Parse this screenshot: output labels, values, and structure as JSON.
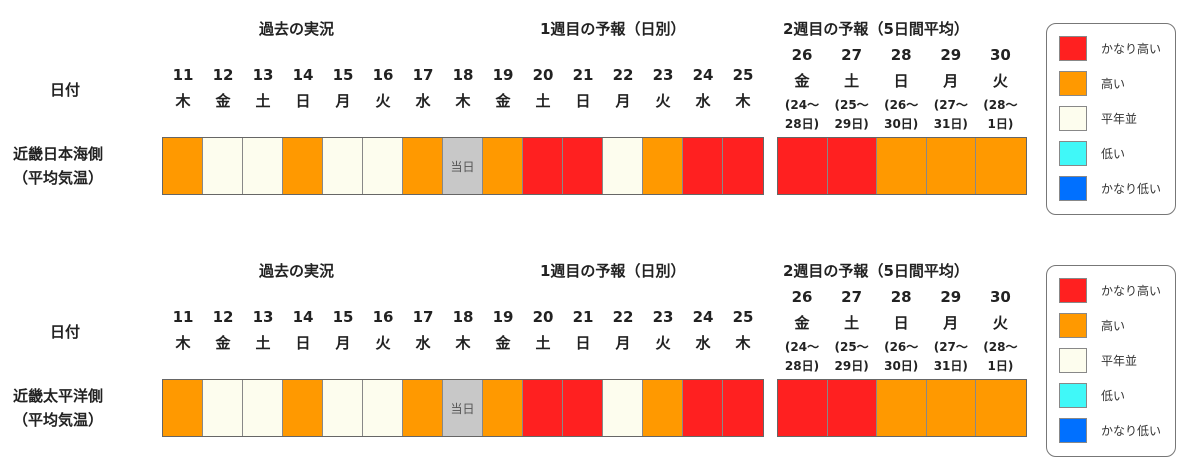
{
  "colors": {
    "much_above": "#FF2020",
    "above": "#FF9900",
    "normal": "#FDFDEE",
    "below": "#40F8F8",
    "much_below": "#0070FF",
    "today": "#C8C8C8"
  },
  "headers": {
    "past": "過去の実況",
    "week1": "1週目の予報（日別）",
    "week2": "2週目の予報（5日間平均）",
    "date_label": "日付"
  },
  "days": [
    {
      "d": "11",
      "w": "木"
    },
    {
      "d": "12",
      "w": "金"
    },
    {
      "d": "13",
      "w": "土"
    },
    {
      "d": "14",
      "w": "日"
    },
    {
      "d": "15",
      "w": "月"
    },
    {
      "d": "16",
      "w": "火"
    },
    {
      "d": "17",
      "w": "水"
    },
    {
      "d": "18",
      "w": "木"
    },
    {
      "d": "19",
      "w": "金"
    },
    {
      "d": "20",
      "w": "土"
    },
    {
      "d": "21",
      "w": "日"
    },
    {
      "d": "22",
      "w": "月"
    },
    {
      "d": "23",
      "w": "火"
    },
    {
      "d": "24",
      "w": "水"
    },
    {
      "d": "25",
      "w": "木"
    }
  ],
  "week2_days": [
    {
      "d": "26",
      "w": "金",
      "r1": "(24〜",
      "r2": "28日)"
    },
    {
      "d": "27",
      "w": "土",
      "r1": "(25〜",
      "r2": "29日)"
    },
    {
      "d": "28",
      "w": "日",
      "r1": "(26〜",
      "r2": "30日)"
    },
    {
      "d": "29",
      "w": "月",
      "r1": "(27〜",
      "r2": "31日)"
    },
    {
      "d": "30",
      "w": "火",
      "r1": "(28〜",
      "r2": "1日)"
    }
  ],
  "today_label": "当日",
  "legend": [
    {
      "key": "much_above",
      "label": "かなり高い"
    },
    {
      "key": "above",
      "label": "高い"
    },
    {
      "key": "normal",
      "label": "平年並"
    },
    {
      "key": "below",
      "label": "低い"
    },
    {
      "key": "much_below",
      "label": "かなり低い"
    }
  ],
  "chart_data": [
    {
      "type": "table",
      "region_line1": "近畿日本海側",
      "region_line2": "（平均気温）",
      "daily": [
        "above",
        "normal",
        "normal",
        "above",
        "normal",
        "normal",
        "above",
        "today",
        "above",
        "much_above",
        "much_above",
        "normal",
        "above",
        "much_above",
        "much_above"
      ],
      "week2": [
        "much_above",
        "much_above",
        "above",
        "above",
        "above"
      ]
    },
    {
      "type": "table",
      "region_line1": "近畿太平洋側",
      "region_line2": "（平均気温）",
      "daily": [
        "above",
        "normal",
        "normal",
        "above",
        "normal",
        "normal",
        "above",
        "today",
        "above",
        "much_above",
        "much_above",
        "normal",
        "above",
        "much_above",
        "much_above"
      ],
      "week2": [
        "much_above",
        "much_above",
        "above",
        "above",
        "above"
      ]
    }
  ]
}
